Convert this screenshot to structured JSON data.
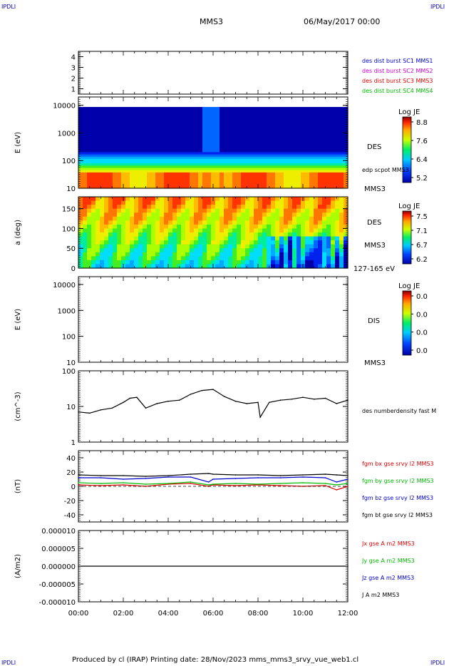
{
  "header": {
    "corner_left": "IPDLI",
    "corner_right": "IPDLI",
    "spacecraft": "MMS3",
    "date": "06/May/2017 00:00",
    "footer_left": "IPDLI",
    "footer_right": "IPDLI",
    "footer": "Produced by cl (IRAP)   Printing date: 28/Nov/2023   mms_mms3_srvy_vue_web1.cl"
  },
  "colors": {
    "blue": "#0000cc",
    "magenta": "#cc00cc",
    "red": "#dd0000",
    "green": "#00bb00",
    "black": "#000000"
  },
  "chart_data": [
    {
      "type": "scatter",
      "id": "burst",
      "ylim": [
        0.5,
        4.5
      ],
      "yticks": [
        "1",
        "2",
        "3",
        "4"
      ],
      "legend": [
        {
          "text": "des dist burst SC1 MMS1",
          "color": "#0000cc"
        },
        {
          "text": "des dist burst SC2 MMS2",
          "color": "#cc00cc"
        },
        {
          "text": "des dist burst SC3 MMS3",
          "color": "#dd0000"
        },
        {
          "text": "des dist burst SC4 MMS4",
          "color": "#00bb00"
        }
      ]
    },
    {
      "type": "heatmap",
      "id": "des_energy",
      "ylabel": "E (eV)",
      "ylim": [
        10,
        20000
      ],
      "yscale": "log",
      "yticks": [
        "10",
        "100",
        "1000",
        "10000"
      ],
      "colorbar": {
        "title": "Log JE",
        "ticks": [
          "8.8",
          "7.6",
          "6.4",
          "5.2"
        ]
      },
      "labels": {
        "species": "DES",
        "overlay": "edp scpot MMS3",
        "spacecraft": "MMS3"
      }
    },
    {
      "type": "heatmap",
      "id": "des_pitch",
      "ylabel": "a (deg)",
      "ylim": [
        0,
        180
      ],
      "yticks": [
        "0",
        "50",
        "100",
        "150"
      ],
      "colorbar": {
        "title": "Log JE",
        "ticks": [
          "7.5",
          "7.1",
          "6.7",
          "6.2"
        ]
      },
      "labels": {
        "species": "DES",
        "spacecraft": "MMS3",
        "range": "127-165 eV"
      }
    },
    {
      "type": "heatmap",
      "id": "dis_energy",
      "ylabel": "E (eV)",
      "ylim": [
        10,
        20000
      ],
      "yscale": "log",
      "yticks": [
        "10",
        "100",
        "1000",
        "10000"
      ],
      "colorbar": {
        "title": "Log JE",
        "ticks": [
          "0.0",
          "0.0",
          "0.0",
          "0.0"
        ]
      },
      "labels": {
        "species": "DIS",
        "spacecraft": "MMS3"
      }
    },
    {
      "type": "line",
      "id": "density",
      "ylabel": "(cm^-3)",
      "ylim": [
        1,
        100
      ],
      "yscale": "log",
      "yticks": [
        "1",
        "10",
        "100"
      ],
      "legend": [
        {
          "text": "des numberdensity fast M",
          "color": "#000000"
        }
      ],
      "x": [
        0,
        0.5,
        1,
        1.5,
        2,
        2.3,
        2.6,
        3,
        3.5,
        4,
        4.5,
        5,
        5.5,
        6,
        6.5,
        7,
        7.5,
        8,
        8.1,
        8.5,
        9,
        9.5,
        10,
        10.5,
        11,
        11.5,
        12
      ],
      "series": [
        {
          "name": "des numberdensity fast M",
          "values": [
            7,
            6.5,
            8,
            9,
            13,
            17,
            18,
            9,
            12,
            14,
            15,
            22,
            28,
            30,
            19,
            14,
            12,
            13,
            5,
            13,
            15,
            16,
            18,
            16,
            17,
            12,
            15
          ]
        }
      ]
    },
    {
      "type": "line",
      "id": "fgm",
      "ylabel": "(nT)",
      "ylim": [
        -50,
        50
      ],
      "yticks": [
        "-40",
        "-20",
        "0",
        "20",
        "40"
      ],
      "legend": [
        {
          "text": "fgm bx gse srvy l2 MMS3",
          "color": "#dd0000"
        },
        {
          "text": "fgm by gse srvy l2 MMS3",
          "color": "#00bb00"
        },
        {
          "text": "fgm bz gse srvy l2 MMS3",
          "color": "#0000cc"
        },
        {
          "text": "fgm bt gse srvy l2 MMS3",
          "color": "#000000"
        }
      ],
      "x": [
        0,
        1,
        2,
        3,
        4,
        5,
        5.8,
        6,
        7,
        8,
        9,
        10,
        11,
        11.5,
        12
      ],
      "series": [
        {
          "name": "fgm bt gse srvy l2 MMS3",
          "color": "#000000",
          "values": [
            16,
            15,
            15,
            14,
            15,
            17,
            18,
            17,
            16,
            16,
            15,
            16,
            17,
            16,
            15
          ]
        },
        {
          "name": "fgm bz gse srvy l2 MMS3",
          "color": "#0000cc",
          "values": [
            12,
            12,
            10,
            11,
            13,
            13,
            6,
            10,
            11,
            12,
            12,
            13,
            12,
            6,
            10
          ]
        },
        {
          "name": "fgm bx gse srvy l2 MMS3",
          "color": "#dd0000",
          "values": [
            2,
            1,
            2,
            0,
            3,
            4,
            0,
            2,
            1,
            2,
            1,
            0,
            1,
            -5,
            0
          ]
        },
        {
          "name": "fgm by gse srvy l2 MMS3",
          "color": "#00bb00",
          "values": [
            5,
            4,
            5,
            3,
            4,
            6,
            2,
            3,
            4,
            3,
            4,
            5,
            4,
            2,
            4
          ]
        }
      ]
    },
    {
      "type": "line",
      "id": "current",
      "ylabel": "(A/m2)",
      "ylim": [
        -1e-05,
        1e-05
      ],
      "yticks": [
        "-0.000010",
        "-0.000005",
        "0.000000",
        "0.000005",
        "0.000010"
      ],
      "legend": [
        {
          "text": "Jx gse A m2 MMS3",
          "color": "#dd0000"
        },
        {
          "text": "Jy gse A m2 MMS3",
          "color": "#00bb00"
        },
        {
          "text": "Jz gse A m2 MMS3",
          "color": "#0000cc"
        },
        {
          "text": "J A m2 MMS3",
          "color": "#000000"
        }
      ],
      "x": [
        0,
        12
      ],
      "series": [
        {
          "name": "J A m2 MMS3",
          "color": "#000000",
          "values": [
            0,
            0
          ]
        }
      ]
    }
  ],
  "x_axis": {
    "ticks": [
      "00:00",
      "02:00",
      "04:00",
      "06:00",
      "08:00",
      "10:00",
      "12:00"
    ],
    "range_hours": [
      0,
      12
    ]
  }
}
